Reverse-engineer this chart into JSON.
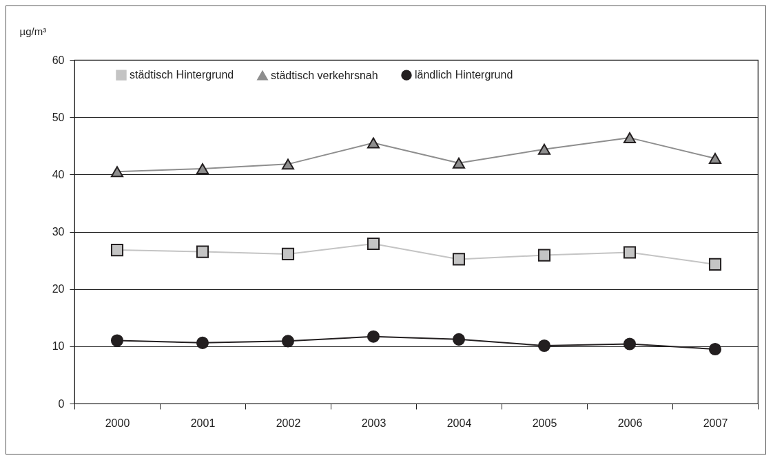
{
  "chart_data": {
    "type": "line",
    "ylabel": "µg/m³",
    "categories": [
      "2000",
      "2001",
      "2002",
      "2003",
      "2004",
      "2005",
      "2006",
      "2007"
    ],
    "ylim": [
      0,
      60
    ],
    "yticks": [
      0,
      10,
      20,
      30,
      40,
      50,
      60
    ],
    "grid": "y",
    "legend": "top",
    "line_style": "solid",
    "series": [
      {
        "name": "städtisch Hintergrund",
        "color": "#c4c4c4",
        "marker": "square",
        "values": [
          26.8,
          26.5,
          26.1,
          27.9,
          25.2,
          25.9,
          26.4,
          24.3
        ]
      },
      {
        "name": "städtisch verkehrsnah",
        "color": "#8e8e8e",
        "marker": "triangle",
        "values": [
          40.5,
          41.0,
          41.8,
          45.5,
          42.0,
          44.4,
          46.4,
          42.8
        ]
      },
      {
        "name": "ländlich Hintergrund",
        "color": "#231f20",
        "marker": "circle",
        "values": [
          11.0,
          10.6,
          10.9,
          11.7,
          11.2,
          10.1,
          10.4,
          9.5
        ]
      }
    ]
  }
}
